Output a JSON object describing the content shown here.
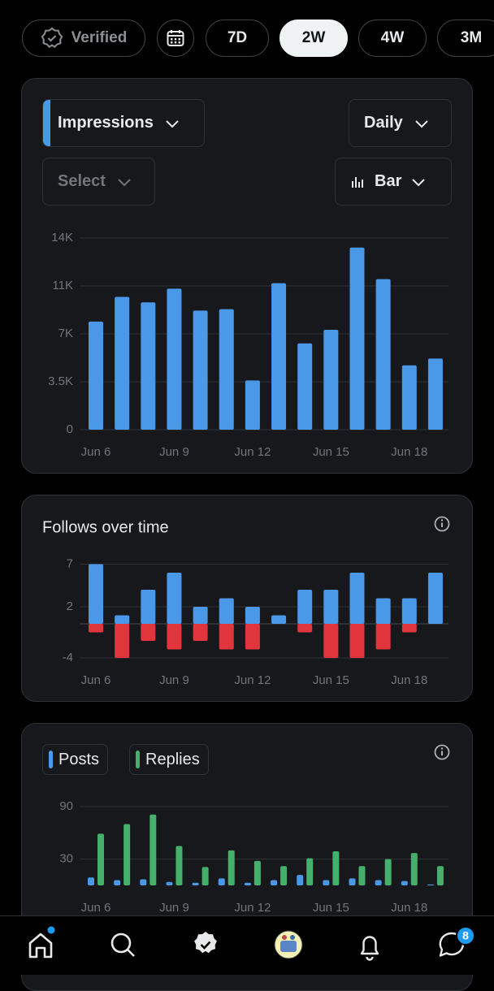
{
  "tabs": {
    "verified": "Verified",
    "periods": [
      "7D",
      "2W",
      "4W",
      "3M"
    ],
    "selected": "2W"
  },
  "controls": {
    "metric": "Impressions",
    "granularity": "Daily",
    "compare": "Select",
    "chart_type": "Bar"
  },
  "chart_data": [
    {
      "type": "bar",
      "categories": [
        "Jun 6",
        null,
        null,
        "Jun 9",
        null,
        null,
        "Jun 12",
        null,
        null,
        "Jun 15",
        null,
        null,
        "Jun 18",
        null
      ],
      "series": [
        {
          "color": "#4a99e9",
          "values": [
            7900,
            9700,
            9300,
            10300,
            8700,
            8800,
            3600,
            10700,
            6300,
            7300,
            13300,
            11000,
            4700,
            5200
          ]
        }
      ],
      "ylim": [
        0,
        14000
      ],
      "yticks": [
        0,
        {
          "value": 3500,
          "label": "3.5K"
        },
        {
          "value": 7000,
          "label": "7K"
        },
        {
          "value": 10500,
          "label": "11K"
        },
        {
          "value": 14000,
          "label": "14K"
        }
      ],
      "grid": true,
      "barmode": "relative"
    },
    {
      "type": "bar",
      "title": "Follows over time",
      "categories": [
        "Jun 6",
        null,
        null,
        "Jun 9",
        null,
        null,
        "Jun 12",
        null,
        null,
        "Jun 15",
        null,
        null,
        "Jun 18",
        null
      ],
      "series": [
        {
          "color": "#4a99e9",
          "values": [
            7,
            1,
            4,
            6,
            2,
            3,
            2,
            1,
            4,
            4,
            6,
            3,
            3,
            6
          ]
        },
        {
          "color": "#e0353b",
          "values": [
            -1,
            -4,
            -2,
            -3,
            -2,
            -3,
            -3,
            0,
            -1,
            -4,
            -4,
            -3,
            -1,
            0
          ]
        }
      ],
      "ylim": [
        -4,
        7
      ],
      "yticks": [
        -4,
        2,
        7
      ],
      "grid": true,
      "barmode": "relative"
    },
    {
      "type": "bar",
      "categories": [
        "Jun 6",
        null,
        null,
        "Jun 9",
        null,
        null,
        "Jun 12",
        null,
        null,
        "Jun 15",
        null,
        null,
        "Jun 18",
        null
      ],
      "series": [
        {
          "name": "Posts",
          "color": "#4a99e9",
          "values": [
            9,
            6,
            7,
            4,
            3,
            8,
            3,
            6,
            12,
            6,
            8,
            6,
            5,
            1
          ]
        },
        {
          "name": "Replies",
          "color": "#45b06c",
          "values": [
            59,
            70,
            81,
            45,
            21,
            40,
            28,
            22,
            31,
            39,
            22,
            30,
            37,
            22
          ]
        }
      ],
      "ylim": [
        0,
        90
      ],
      "yticks": [
        30,
        90
      ],
      "grid": true,
      "barmode": "group"
    }
  ],
  "nav": {
    "messages_badge": 8
  }
}
